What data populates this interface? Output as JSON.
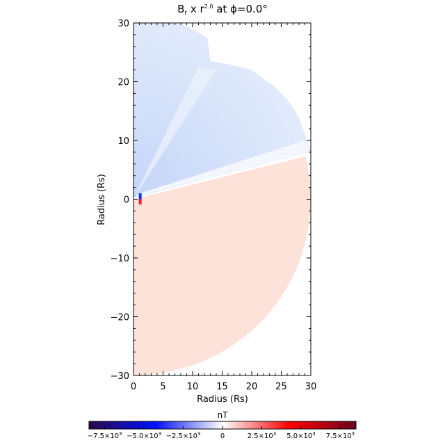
{
  "chart_data": {
    "type": "heatmap",
    "title": {
      "base": "B",
      "sub": "r",
      "mid": " x r",
      "sup": "2.0",
      "tail": " at ϕ=0.0°"
    },
    "xlabel": "Radius (Rs)",
    "ylabel": "Radius (Rs)",
    "xlim": [
      0,
      30
    ],
    "ylim": [
      -30,
      30
    ],
    "xticks": [
      0,
      5,
      10,
      15,
      20,
      25,
      30
    ],
    "xtick_labels": [
      "0",
      "5",
      "10",
      "15",
      "20",
      "25",
      "30"
    ],
    "yticks": [
      -30,
      -20,
      -10,
      0,
      10,
      20,
      30
    ],
    "ytick_labels": [
      "−30",
      "−20",
      "−10",
      "0",
      "10",
      "20",
      "30"
    ],
    "colorbar": {
      "label": "nT",
      "range": [
        -8500,
        8500
      ],
      "ticks": [
        -7500,
        -5000,
        -2500,
        0,
        2500,
        5000,
        7500
      ],
      "tick_labels": [
        {
          "m": "−7.5×10",
          "e": "3"
        },
        {
          "m": "−5.0×10",
          "e": "3"
        },
        {
          "m": "−2.5×10",
          "e": "3"
        },
        {
          "m": "0",
          "e": ""
        },
        {
          "m": "2.5×10",
          "e": "3"
        },
        {
          "m": "5.0×10",
          "e": "3"
        },
        {
          "m": "7.5×10",
          "e": "3"
        }
      ],
      "colors": [
        "#2a0a4a",
        "#0010ff",
        "#ffffff",
        "#ff0000",
        "#6a0020"
      ]
    },
    "regions": [
      {
        "name": "northern-negative-polarity",
        "color": "#d8e4fb"
      },
      {
        "name": "southern-positive-polarity",
        "color": "#fde2da"
      }
    ]
  }
}
